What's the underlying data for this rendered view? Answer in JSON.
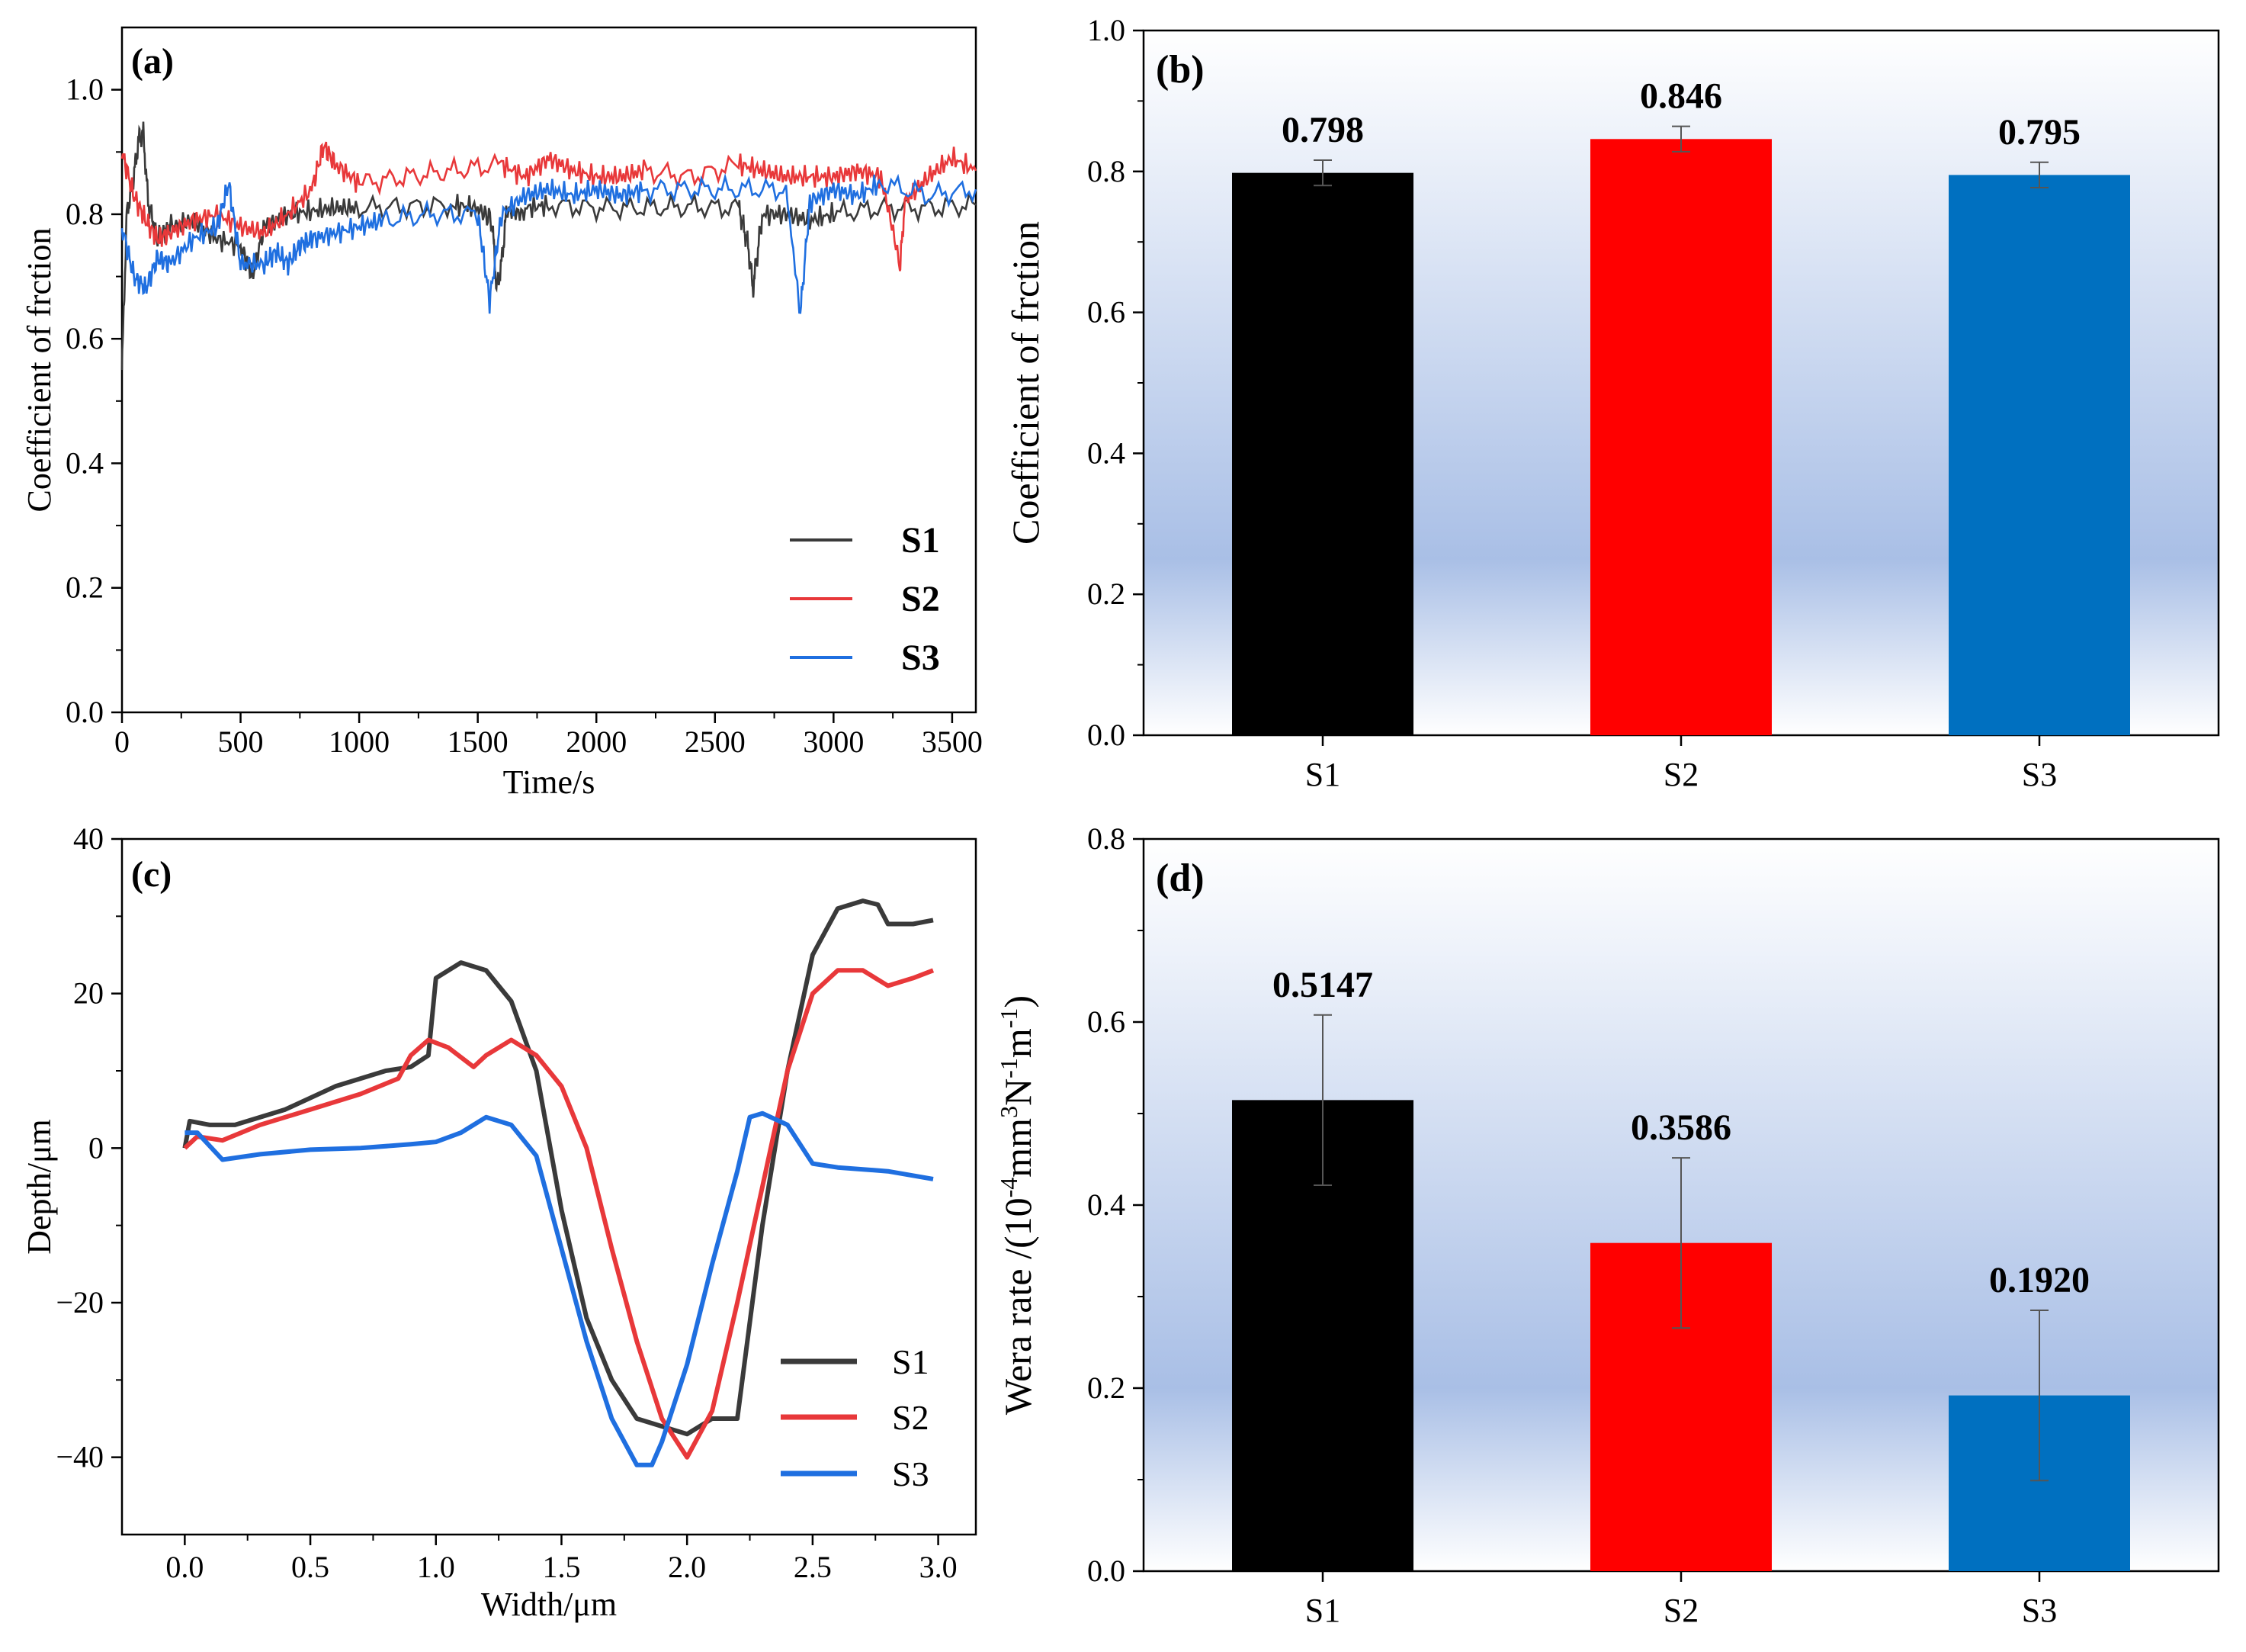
{
  "colors": {
    "s1": "#000000",
    "s2": "#ff0000",
    "s3": "#0070c0",
    "line_s1": "#3a3a3a",
    "line_s2": "#e8383a",
    "line_s3": "#1f6fe0",
    "gradient_top": "#ffffff",
    "gradient_mid": "#a9bfe6"
  },
  "chart_data": [
    {
      "type": "line",
      "panel_label": "(a)",
      "xlabel": "Time/s",
      "ylabel": "Coefficient of frction",
      "xlim": [
        0,
        3600
      ],
      "ylim": [
        0,
        1.1
      ],
      "xticks": [
        0,
        500,
        1000,
        1500,
        2000,
        2500,
        3000,
        3500
      ],
      "xtick_labels": [
        "0",
        "500",
        "1000",
        "1500",
        "2000",
        "2500",
        "3000",
        "3500"
      ],
      "yticks": [
        0,
        0.2,
        0.4,
        0.6,
        0.8,
        1.0
      ],
      "ytick_labels": [
        "0.0",
        "0.2",
        "0.4",
        "0.6",
        "0.8",
        "1.0"
      ],
      "legend": [
        "S1",
        "S2",
        "S3"
      ],
      "legend_position": "bottom-right",
      "series": [
        {
          "name": "S1",
          "points": [
            [
              0,
              0.55
            ],
            [
              20,
              0.8
            ],
            [
              50,
              0.86
            ],
            [
              70,
              0.92
            ],
            [
              90,
              0.93
            ],
            [
              110,
              0.82
            ],
            [
              150,
              0.76
            ],
            [
              200,
              0.78
            ],
            [
              300,
              0.79
            ],
            [
              400,
              0.76
            ],
            [
              500,
              0.75
            ],
            [
              550,
              0.7
            ],
            [
              600,
              0.78
            ],
            [
              700,
              0.8
            ],
            [
              800,
              0.805
            ],
            [
              900,
              0.81
            ],
            [
              1000,
              0.81
            ],
            [
              1200,
              0.812
            ],
            [
              1400,
              0.815
            ],
            [
              1500,
              0.81
            ],
            [
              1560,
              0.79
            ],
            [
              1580,
              0.68
            ],
            [
              1600,
              0.72
            ],
            [
              1620,
              0.8
            ],
            [
              1700,
              0.81
            ],
            [
              1800,
              0.815
            ],
            [
              2000,
              0.81
            ],
            [
              2200,
              0.81
            ],
            [
              2400,
              0.812
            ],
            [
              2600,
              0.81
            ],
            [
              2640,
              0.75
            ],
            [
              2660,
              0.68
            ],
            [
              2680,
              0.74
            ],
            [
              2700,
              0.8
            ],
            [
              2800,
              0.8
            ],
            [
              2900,
              0.79
            ],
            [
              3000,
              0.8
            ],
            [
              3200,
              0.81
            ],
            [
              3400,
              0.81
            ],
            [
              3600,
              0.815
            ]
          ]
        },
        {
          "name": "S2",
          "points": [
            [
              0,
              0.9
            ],
            [
              50,
              0.83
            ],
            [
              100,
              0.79
            ],
            [
              150,
              0.76
            ],
            [
              200,
              0.77
            ],
            [
              300,
              0.79
            ],
            [
              400,
              0.8
            ],
            [
              500,
              0.78
            ],
            [
              600,
              0.77
            ],
            [
              700,
              0.8
            ],
            [
              800,
              0.84
            ],
            [
              850,
              0.91
            ],
            [
              900,
              0.88
            ],
            [
              1000,
              0.85
            ],
            [
              1200,
              0.86
            ],
            [
              1400,
              0.87
            ],
            [
              1600,
              0.88
            ],
            [
              1700,
              0.86
            ],
            [
              1800,
              0.89
            ],
            [
              1900,
              0.87
            ],
            [
              2000,
              0.86
            ],
            [
              2100,
              0.86
            ],
            [
              2200,
              0.87
            ],
            [
              2400,
              0.86
            ],
            [
              2600,
              0.88
            ],
            [
              2700,
              0.87
            ],
            [
              2800,
              0.86
            ],
            [
              2900,
              0.86
            ],
            [
              3000,
              0.86
            ],
            [
              3100,
              0.87
            ],
            [
              3200,
              0.86
            ],
            [
              3280,
              0.71
            ],
            [
              3300,
              0.82
            ],
            [
              3400,
              0.86
            ],
            [
              3500,
              0.89
            ],
            [
              3600,
              0.87
            ]
          ]
        },
        {
          "name": "S3",
          "points": [
            [
              0,
              0.78
            ],
            [
              50,
              0.7
            ],
            [
              100,
              0.68
            ],
            [
              150,
              0.73
            ],
            [
              200,
              0.72
            ],
            [
              300,
              0.76
            ],
            [
              400,
              0.78
            ],
            [
              450,
              0.85
            ],
            [
              500,
              0.72
            ],
            [
              600,
              0.72
            ],
            [
              650,
              0.74
            ],
            [
              700,
              0.72
            ],
            [
              750,
              0.75
            ],
            [
              800,
              0.76
            ],
            [
              900,
              0.77
            ],
            [
              1000,
              0.78
            ],
            [
              1100,
              0.79
            ],
            [
              1300,
              0.8
            ],
            [
              1500,
              0.8
            ],
            [
              1550,
              0.66
            ],
            [
              1600,
              0.8
            ],
            [
              1700,
              0.83
            ],
            [
              1800,
              0.84
            ],
            [
              1900,
              0.83
            ],
            [
              2000,
              0.84
            ],
            [
              2100,
              0.83
            ],
            [
              2200,
              0.84
            ],
            [
              2400,
              0.84
            ],
            [
              2600,
              0.84
            ],
            [
              2800,
              0.84
            ],
            [
              2860,
              0.64
            ],
            [
              2900,
              0.82
            ],
            [
              3000,
              0.84
            ],
            [
              3100,
              0.83
            ],
            [
              3200,
              0.85
            ],
            [
              3400,
              0.83
            ],
            [
              3600,
              0.84
            ]
          ]
        }
      ]
    },
    {
      "type": "bar",
      "panel_label": "(b)",
      "xlabel": "",
      "ylabel": "Coefficient  of frction",
      "categories": [
        "S1",
        "S2",
        "S3"
      ],
      "values": [
        0.798,
        0.846,
        0.795
      ],
      "value_labels": [
        "0.798",
        "0.846",
        "0.795"
      ],
      "errors": [
        0.018,
        0.018,
        0.018
      ],
      "ylim": [
        0,
        1.0
      ],
      "yticks": [
        0,
        0.2,
        0.4,
        0.6,
        0.8,
        1.0
      ],
      "ytick_labels": [
        "0.0",
        "0.2",
        "0.4",
        "0.6",
        "0.8",
        "1.0"
      ]
    },
    {
      "type": "line",
      "panel_label": "(c)",
      "xlabel": "Width/μm",
      "ylabel": "Depth/μm",
      "xlim": [
        -0.25,
        3.15
      ],
      "ylim": [
        -50,
        40
      ],
      "xticks": [
        0,
        0.5,
        1.0,
        1.5,
        2.0,
        2.5,
        3.0
      ],
      "xtick_labels": [
        "0.0",
        "0.5",
        "1.0",
        "1.5",
        "2.0",
        "2.5",
        "3.0"
      ],
      "yticks": [
        -40,
        -20,
        0,
        20,
        40
      ],
      "ytick_labels": [
        "−40",
        "−20",
        "0",
        "20",
        "40"
      ],
      "legend": [
        "S1",
        "S2",
        "S3"
      ],
      "legend_position": "bottom-right",
      "series": [
        {
          "name": "S1",
          "points": [
            [
              0,
              0
            ],
            [
              0.02,
              3.5
            ],
            [
              0.1,
              3
            ],
            [
              0.2,
              3
            ],
            [
              0.4,
              5
            ],
            [
              0.6,
              8
            ],
            [
              0.8,
              10
            ],
            [
              0.9,
              10.5
            ],
            [
              0.97,
              12
            ],
            [
              1.0,
              22
            ],
            [
              1.1,
              24
            ],
            [
              1.2,
              23
            ],
            [
              1.3,
              19
            ],
            [
              1.4,
              10
            ],
            [
              1.5,
              -8
            ],
            [
              1.6,
              -22
            ],
            [
              1.7,
              -30
            ],
            [
              1.8,
              -35
            ],
            [
              1.9,
              -36
            ],
            [
              2.0,
              -37
            ],
            [
              2.1,
              -35
            ],
            [
              2.2,
              -35
            ],
            [
              2.3,
              -10
            ],
            [
              2.4,
              10
            ],
            [
              2.5,
              25
            ],
            [
              2.6,
              31
            ],
            [
              2.7,
              32
            ],
            [
              2.76,
              31.5
            ],
            [
              2.8,
              29
            ],
            [
              2.9,
              29
            ],
            [
              2.98,
              29.5
            ]
          ]
        },
        {
          "name": "S2",
          "points": [
            [
              0,
              0
            ],
            [
              0.05,
              1.5
            ],
            [
              0.15,
              1
            ],
            [
              0.3,
              3
            ],
            [
              0.5,
              5
            ],
            [
              0.7,
              7
            ],
            [
              0.85,
              9
            ],
            [
              0.9,
              12
            ],
            [
              0.97,
              14
            ],
            [
              1.05,
              13
            ],
            [
              1.15,
              10.5
            ],
            [
              1.2,
              12
            ],
            [
              1.3,
              14
            ],
            [
              1.4,
              12
            ],
            [
              1.5,
              8
            ],
            [
              1.6,
              0
            ],
            [
              1.7,
              -13
            ],
            [
              1.8,
              -25
            ],
            [
              1.9,
              -35
            ],
            [
              2.0,
              -40
            ],
            [
              2.1,
              -34
            ],
            [
              2.2,
              -20
            ],
            [
              2.3,
              -5
            ],
            [
              2.4,
              10
            ],
            [
              2.5,
              20
            ],
            [
              2.6,
              23
            ],
            [
              2.7,
              23
            ],
            [
              2.8,
              21
            ],
            [
              2.9,
              22
            ],
            [
              2.98,
              23
            ]
          ]
        },
        {
          "name": "S3",
          "points": [
            [
              0,
              2
            ],
            [
              0.05,
              2
            ],
            [
              0.15,
              -1.5
            ],
            [
              0.3,
              -0.8
            ],
            [
              0.5,
              -0.2
            ],
            [
              0.7,
              0
            ],
            [
              0.9,
              0.5
            ],
            [
              1.0,
              0.8
            ],
            [
              1.1,
              2
            ],
            [
              1.2,
              4
            ],
            [
              1.3,
              3
            ],
            [
              1.4,
              -1
            ],
            [
              1.5,
              -13
            ],
            [
              1.6,
              -25
            ],
            [
              1.7,
              -35
            ],
            [
              1.8,
              -41
            ],
            [
              1.86,
              -41
            ],
            [
              1.9,
              -38
            ],
            [
              2.0,
              -28
            ],
            [
              2.1,
              -15
            ],
            [
              2.2,
              -3
            ],
            [
              2.25,
              4
            ],
            [
              2.3,
              4.5
            ],
            [
              2.4,
              3
            ],
            [
              2.5,
              -2
            ],
            [
              2.6,
              -2.5
            ],
            [
              2.8,
              -3
            ],
            [
              2.98,
              -4
            ]
          ]
        }
      ]
    },
    {
      "type": "bar",
      "panel_label": "(d)",
      "xlabel": "",
      "ylabel_main": "Wera rate /(10",
      "ylabel_exp1": "-4",
      "ylabel_part2": "mm",
      "ylabel_exp2": "3",
      "ylabel_part3": "N",
      "ylabel_exp3": "-1",
      "ylabel_part4": "m",
      "ylabel_exp4": "-1",
      "ylabel_end": ")",
      "categories": [
        "S1",
        "S2",
        "S3"
      ],
      "values": [
        0.5147,
        0.3586,
        0.192
      ],
      "value_labels": [
        "0.5147",
        "0.3586",
        "0.1920"
      ],
      "errors": [
        0.093,
        0.093,
        0.093
      ],
      "ylim": [
        0,
        0.8
      ],
      "yticks": [
        0,
        0.2,
        0.4,
        0.6,
        0.8
      ],
      "ytick_labels": [
        "0.0",
        "0.2",
        "0.4",
        "0.6",
        "0.8"
      ]
    }
  ]
}
